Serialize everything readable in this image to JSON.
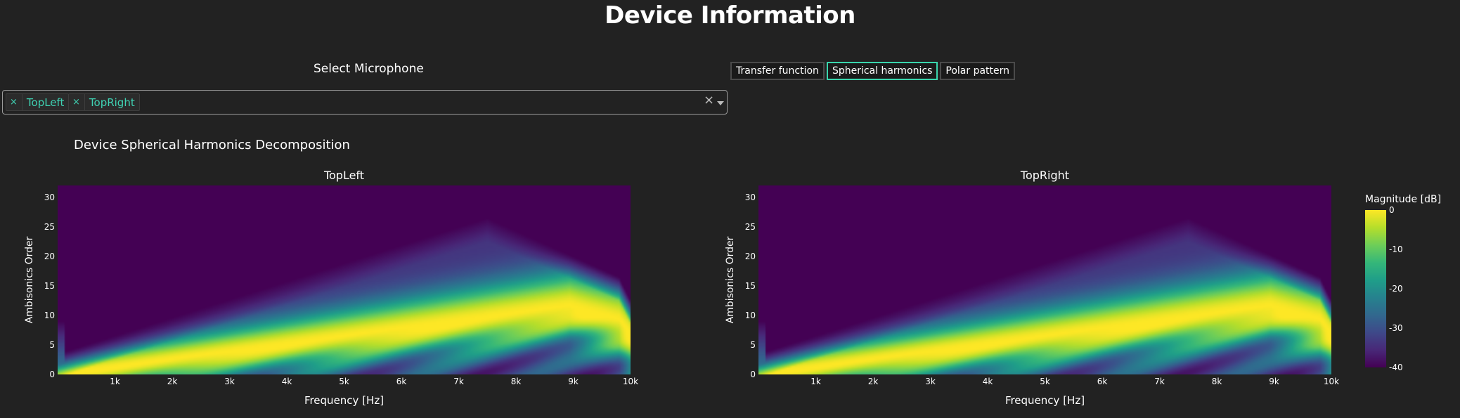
{
  "page": {
    "title": "Device Information"
  },
  "selector": {
    "label": "Select Microphone",
    "selected": [
      "TopLeft",
      "TopRight"
    ],
    "chip_remove_glyph": "×",
    "clear_glyph": "×"
  },
  "tabs": [
    {
      "label": "Transfer function",
      "active": false
    },
    {
      "label": "Spherical harmonics",
      "active": true
    },
    {
      "label": "Polar pattern",
      "active": false
    }
  ],
  "section": {
    "title": "Device Spherical Harmonics Decomposition"
  },
  "colorbar": {
    "title": "Magnitude [dB]",
    "ticks": [
      0,
      -10,
      -20,
      -30,
      -40
    ],
    "range": [
      -40,
      0
    ]
  },
  "colors": {
    "accent": "#3ad6ad",
    "viridis": [
      "#440154",
      "#482878",
      "#3e4989",
      "#31688e",
      "#26828e",
      "#1f9e89",
      "#35b779",
      "#6ece58",
      "#b5de2b",
      "#fde725"
    ]
  },
  "chart_data": [
    {
      "type": "heatmap",
      "title": "TopLeft",
      "xlabel": "Frequency [Hz]",
      "ylabel": "Ambisonics Order",
      "x_range": [
        0,
        10000
      ],
      "y_range": [
        0,
        32
      ],
      "x_ticks": [
        1000,
        2000,
        3000,
        4000,
        5000,
        6000,
        7000,
        8000,
        9000,
        10000
      ],
      "x_tick_labels": [
        "1k",
        "2k",
        "3k",
        "4k",
        "5k",
        "6k",
        "7k",
        "8k",
        "9k",
        "10k"
      ],
      "y_ticks": [
        0,
        5,
        10,
        15,
        20,
        25,
        30
      ],
      "z_range_db": [
        -40,
        0
      ],
      "peak_ridge_order_per_khz": 1.3,
      "max_order_envelope": [
        [
          0,
          2
        ],
        [
          7500,
          25
        ],
        [
          9800,
          15
        ],
        [
          10000,
          11
        ]
      ]
    },
    {
      "type": "heatmap",
      "title": "TopRight",
      "xlabel": "Frequency [Hz]",
      "ylabel": "Ambisonics Order",
      "x_range": [
        0,
        10000
      ],
      "y_range": [
        0,
        32
      ],
      "x_ticks": [
        1000,
        2000,
        3000,
        4000,
        5000,
        6000,
        7000,
        8000,
        9000,
        10000
      ],
      "x_tick_labels": [
        "1k",
        "2k",
        "3k",
        "4k",
        "5k",
        "6k",
        "7k",
        "8k",
        "9k",
        "10k"
      ],
      "y_ticks": [
        0,
        5,
        10,
        15,
        20,
        25,
        30
      ],
      "z_range_db": [
        -40,
        0
      ],
      "peak_ridge_order_per_khz": 1.3,
      "max_order_envelope": [
        [
          0,
          2
        ],
        [
          7500,
          25
        ],
        [
          9800,
          15
        ],
        [
          10000,
          11
        ]
      ]
    }
  ]
}
